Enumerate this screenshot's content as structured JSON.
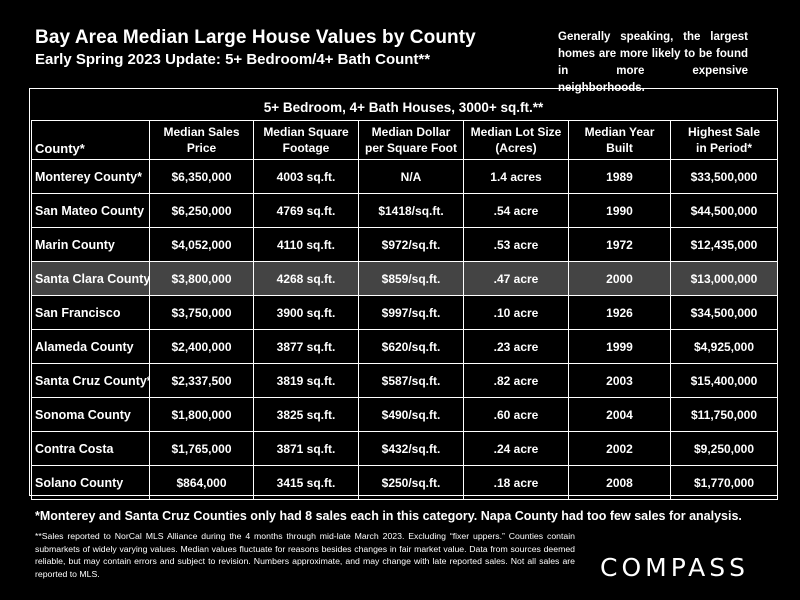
{
  "header": {
    "title": "Bay Area Median Large House Values by County",
    "subtitle": "Early Spring 2023 Update: 5+ Bedroom/4+ Bath Count**",
    "side_note": "Generally speaking, the largest homes are more likely to be found in more expensive neighborhoods."
  },
  "table": {
    "title": "5+ Bedroom, 4+ Bath Houses, 3000+ sq.ft.**",
    "columns": [
      [
        "County*"
      ],
      [
        "Median Sales",
        "Price"
      ],
      [
        "Median Square",
        "Footage"
      ],
      [
        "Median Dollar",
        "per Square Foot"
      ],
      [
        "Median Lot Size",
        "(Acres)"
      ],
      [
        "Median Year",
        "Built"
      ],
      [
        "Highest Sale",
        "in Period*"
      ]
    ],
    "highlight_color": "#444444",
    "rows": [
      {
        "county": "Monterey County*",
        "price": "$6,350,000",
        "sqft": "4003 sq.ft.",
        "ppsf": "N/A",
        "lot": "1.4 acres",
        "year": "1989",
        "highest": "$33,500,000",
        "highlight": false
      },
      {
        "county": "San Mateo County",
        "price": "$6,250,000",
        "sqft": "4769 sq.ft.",
        "ppsf": "$1418/sq.ft.",
        "lot": ".54 acre",
        "year": "1990",
        "highest": "$44,500,000",
        "highlight": false
      },
      {
        "county": "Marin County",
        "price": "$4,052,000",
        "sqft": "4110 sq.ft.",
        "ppsf": "$972/sq.ft.",
        "lot": ".53 acre",
        "year": "1972",
        "highest": "$12,435,000",
        "highlight": false
      },
      {
        "county": "Santa Clara County",
        "price": "$3,800,000",
        "sqft": "4268 sq.ft.",
        "ppsf": "$859/sq.ft.",
        "lot": ".47 acre",
        "year": "2000",
        "highest": "$13,000,000",
        "highlight": true
      },
      {
        "county": "San Francisco",
        "price": "$3,750,000",
        "sqft": "3900 sq.ft.",
        "ppsf": "$997/sq.ft.",
        "lot": ".10 acre",
        "year": "1926",
        "highest": "$34,500,000",
        "highlight": false
      },
      {
        "county": "Alameda County",
        "price": "$2,400,000",
        "sqft": "3877 sq.ft.",
        "ppsf": "$620/sq.ft.",
        "lot": ".23 acre",
        "year": "1999",
        "highest": "$4,925,000",
        "highlight": false
      },
      {
        "county": "Santa Cruz County*",
        "price": "$2,337,500",
        "sqft": "3819 sq.ft.",
        "ppsf": "$587/sq.ft.",
        "lot": ".82 acre",
        "year": "2003",
        "highest": "$15,400,000",
        "highlight": false
      },
      {
        "county": "Sonoma County",
        "price": "$1,800,000",
        "sqft": "3825 sq.ft.",
        "ppsf": "$490/sq.ft.",
        "lot": ".60 acre",
        "year": "2004",
        "highest": "$11,750,000",
        "highlight": false
      },
      {
        "county": "Contra Costa",
        "price": "$1,765,000",
        "sqft": "3871 sq.ft.",
        "ppsf": "$432/sq.ft.",
        "lot": ".24 acre",
        "year": "2002",
        "highest": "$9,250,000",
        "highlight": false
      },
      {
        "county": "Solano County",
        "price": "$864,000",
        "sqft": "3415 sq.ft.",
        "ppsf": "$250/sq.ft.",
        "lot": ".18 acre",
        "year": "2008",
        "highest": "$1,770,000",
        "highlight": false
      }
    ]
  },
  "footer": {
    "note_main": "*Monterey and Santa Cruz Counties only had 8 sales each in this category. Napa County had too few sales for analysis.",
    "note_small": "**Sales reported to NorCal MLS Alliance during the 4 months through mid-late March 2023. Excluding “fixer uppers.” Counties contain submarkets of widely varying values. Median values fluctuate for reasons besides changes in fair market value. Data from sources deemed reliable, but may contain errors and subject to revision. Numbers approximate, and may change with late reported sales. Not all sales are reported to MLS.",
    "logo": "COMPASS"
  }
}
